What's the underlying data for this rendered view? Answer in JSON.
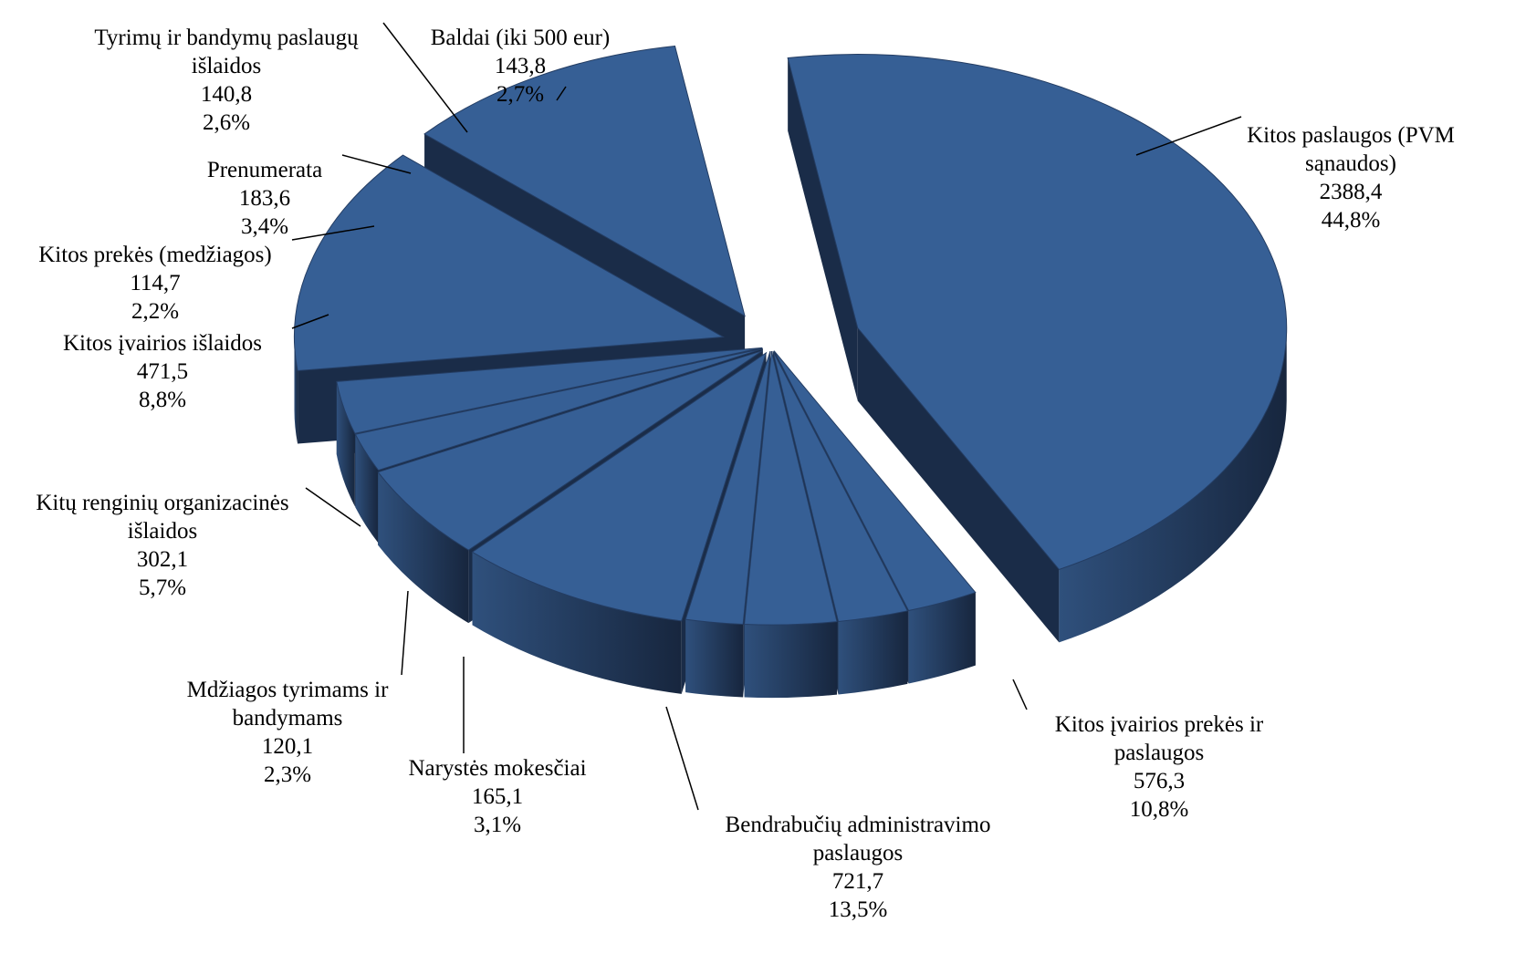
{
  "chart_data": {
    "type": "pie",
    "style": "3d-exploded",
    "title": "",
    "unit": "",
    "colors": {
      "top_face": "#365f95",
      "side_face": "#1a2c48",
      "side_face_light": "#2b4a73",
      "edge": "#243d63",
      "leader_line": "#000000"
    },
    "slices": [
      {
        "label": "Kitos paslaugos (PVM sąnaudos)",
        "label_lines": [
          "Kitos paslaugos (PVM",
          "sąnaudos)"
        ],
        "value": 2388.4,
        "value_text": "2388,4",
        "percent": 44.8,
        "percent_text": "44,8%"
      },
      {
        "label": "Kitos įvairios prekės ir paslaugos",
        "label_lines": [
          "Kitos įvairios prekės ir",
          "paslaugos"
        ],
        "value": 576.3,
        "value_text": "576,3",
        "percent": 10.8,
        "percent_text": "10,8%"
      },
      {
        "label": "Bendrabučių administravimo paslaugos",
        "label_lines": [
          "Bendrabučių administravimo",
          "paslaugos"
        ],
        "value": 721.7,
        "value_text": "721,7",
        "percent": 13.5,
        "percent_text": "13,5%"
      },
      {
        "label": "Narystės mokesčiai",
        "label_lines": [
          "Narystės mokesčiai"
        ],
        "value": 165.1,
        "value_text": "165,1",
        "percent": 3.1,
        "percent_text": "3,1%"
      },
      {
        "label": "Mdžiagos tyrimams ir bandymams",
        "label_lines": [
          "Mdžiagos tyrimams ir",
          "bandymams"
        ],
        "value": 120.1,
        "value_text": "120,1",
        "percent": 2.3,
        "percent_text": "2,3%"
      },
      {
        "label": "Kitų renginių organizacinės išlaidos",
        "label_lines": [
          "Kitų renginių organizacinės",
          "išlaidos"
        ],
        "value": 302.1,
        "value_text": "302,1",
        "percent": 5.7,
        "percent_text": "5,7%"
      },
      {
        "label": "Kitos įvairios išlaidos",
        "label_lines": [
          "Kitos įvairios išlaidos"
        ],
        "value": 471.5,
        "value_text": "471,5",
        "percent": 8.8,
        "percent_text": "8,8%"
      },
      {
        "label": "Kitos prekės (medžiagos)",
        "label_lines": [
          "Kitos prekės (medžiagos)"
        ],
        "value": 114.7,
        "value_text": "114,7",
        "percent": 2.2,
        "percent_text": "2,2%"
      },
      {
        "label": "Prenumerata",
        "label_lines": [
          "Prenumerata"
        ],
        "value": 183.6,
        "value_text": "183,6",
        "percent": 3.4,
        "percent_text": "3,4%"
      },
      {
        "label": "Tyrimų ir bandymų paslaugų išlaidos",
        "label_lines": [
          "Tyrimų ir bandymų paslaugų",
          "išlaidos"
        ],
        "value": 140.8,
        "value_text": "140,8",
        "percent": 2.6,
        "percent_text": "2,6%"
      },
      {
        "label": "Baldai (iki 500 eur)",
        "label_lines": [
          "Baldai (iki 500 eur)"
        ],
        "value": 143.8,
        "value_text": "143,8",
        "percent": 2.7,
        "percent_text": "2,7%"
      }
    ]
  }
}
